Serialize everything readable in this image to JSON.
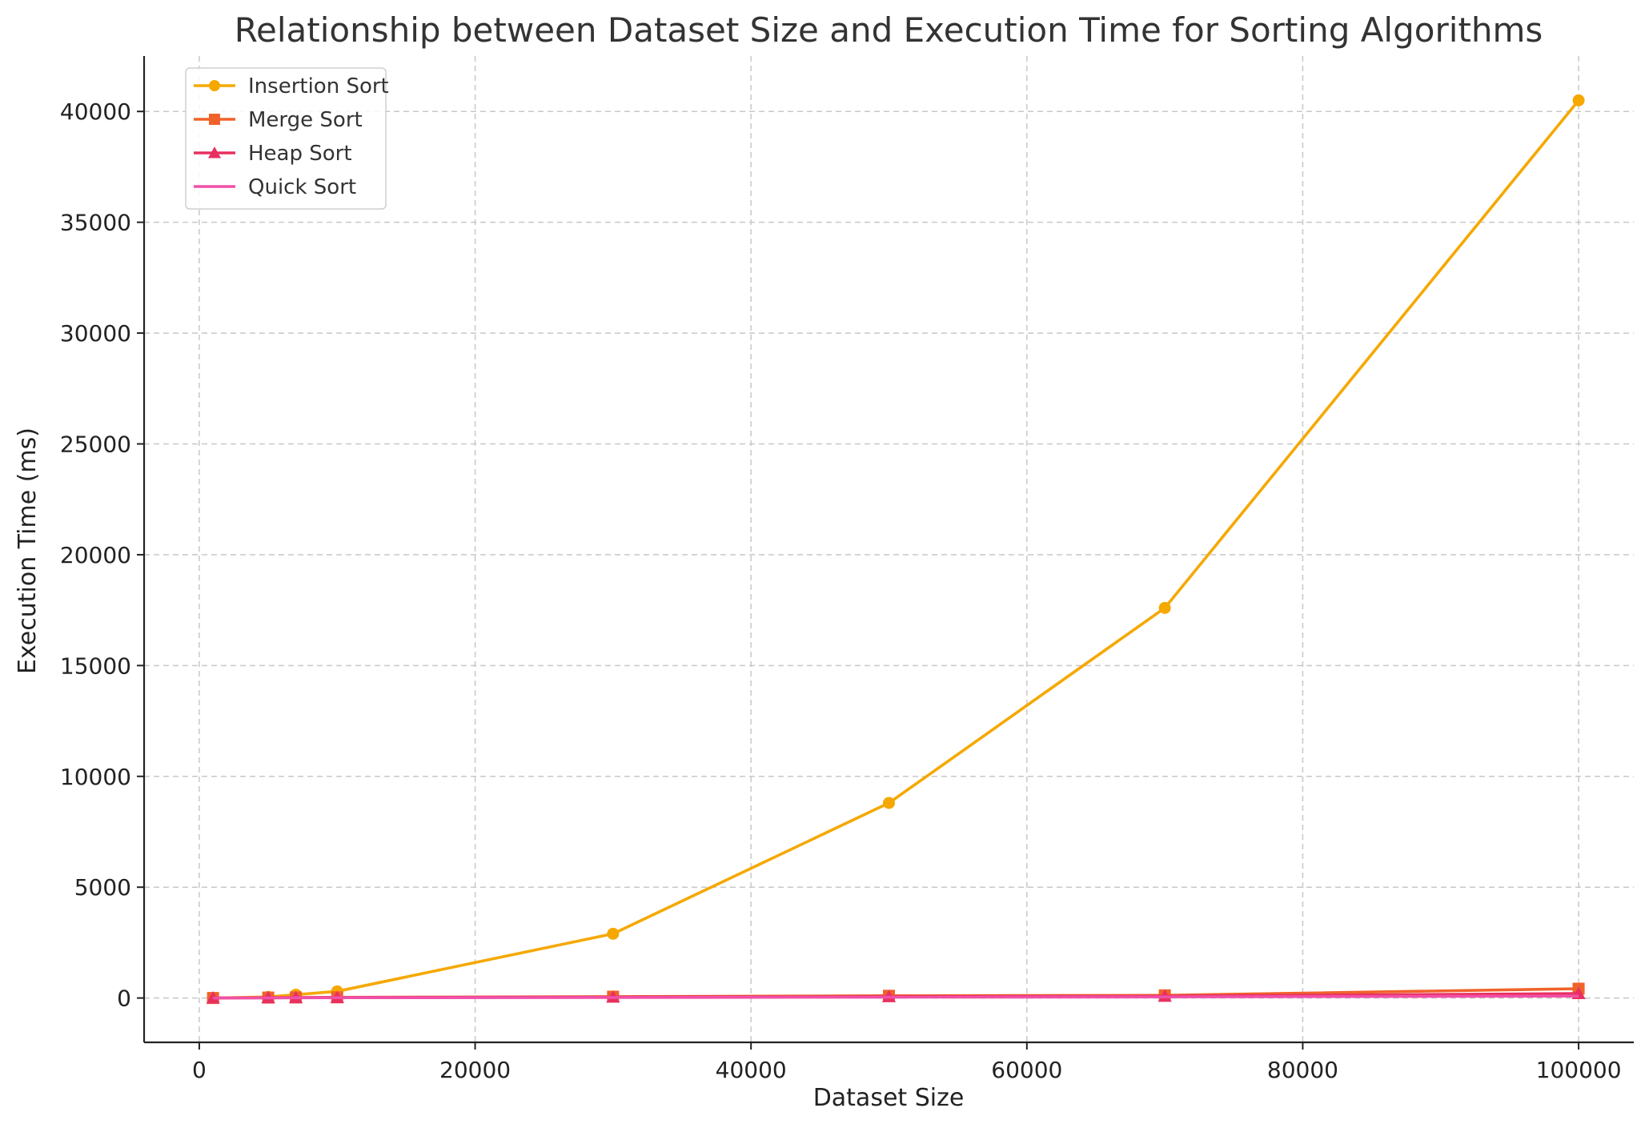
{
  "chart_data": {
    "type": "line",
    "title": "Relationship between Dataset Size and Execution Time for Sorting Algorithms",
    "xlabel": "Dataset Size",
    "ylabel": "Execution Time (ms)",
    "xlim": [
      -4000,
      104000
    ],
    "ylim": [
      -2000,
      42500
    ],
    "xticks": [
      0,
      20000,
      40000,
      60000,
      80000,
      100000
    ],
    "xtick_labels": [
      "0",
      "20000",
      "40000",
      "60000",
      "80000",
      "100000"
    ],
    "yticks": [
      0,
      5000,
      10000,
      15000,
      20000,
      25000,
      30000,
      35000,
      40000
    ],
    "ytick_labels": [
      "0",
      "5000",
      "10000",
      "15000",
      "20000",
      "25000",
      "30000",
      "35000",
      "40000"
    ],
    "grid": true,
    "legend_position": "top-left",
    "x": [
      1000,
      5000,
      7000,
      10000,
      30000,
      50000,
      70000,
      100000
    ],
    "series": [
      {
        "name": "Insertion Sort",
        "color": "#f5a800",
        "marker": "circle",
        "values": [
          0,
          50,
          150,
          300,
          2900,
          8800,
          17600,
          40500
        ]
      },
      {
        "name": "Merge Sort",
        "color": "#f0622a",
        "marker": "square",
        "values": [
          0,
          20,
          25,
          30,
          60,
          100,
          120,
          420
        ]
      },
      {
        "name": "Heap Sort",
        "color": "#e83060",
        "marker": "triangle",
        "values": [
          0,
          10,
          15,
          20,
          40,
          60,
          80,
          200
        ]
      },
      {
        "name": "Quick Sort",
        "color": "#f050a8",
        "marker": "none",
        "values": [
          0,
          5,
          10,
          15,
          25,
          40,
          50,
          90
        ]
      }
    ]
  }
}
